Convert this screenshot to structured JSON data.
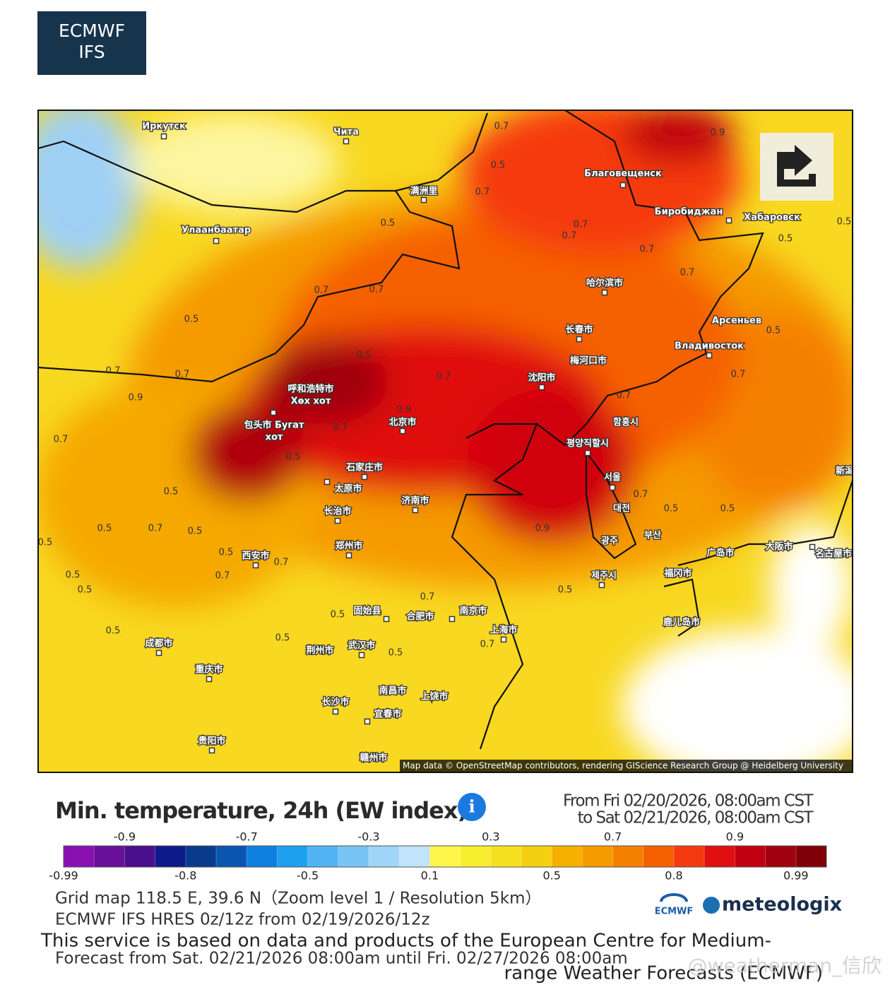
{
  "logo": {
    "line1": "ECMWF",
    "line2": "IFS"
  },
  "map": {
    "cities": [
      "Иркутск",
      "Чита",
      "Благовещенск",
      "Биробиджан",
      "Хабаровск",
      "满洲里",
      "Улаанбаатар",
      "哈尔滨市",
      "长春市",
      "Арсеньев",
      "Владивосток",
      "梅河口市",
      "沈阳市",
      "呼和浩特市",
      "Хөх хот",
      "包头市 Бугат",
      "хот",
      "北京市",
      "함흥시",
      "평양직할시",
      "石家庄市",
      "太原市",
      "서울",
      "济南市",
      "长治市",
      "대전",
      "부산",
      "광주",
      "郑州市",
      "西安市",
      "广岛市",
      "大阪市",
      "名古屋市",
      "제주시",
      "福冈市",
      "固始县",
      "合肥市",
      "南京市",
      "上海市",
      "鹿儿岛市",
      "成都市",
      "荆州市",
      "武汉市",
      "重庆市",
      "南昌市",
      "长沙市",
      "上饶市",
      "宜春市",
      "贵阳市",
      "赣州市",
      "新潟"
    ],
    "contour_labels": [
      0.7,
      0.5,
      0.7,
      0.9,
      0.5,
      0.7,
      0.7,
      0.5,
      0.7,
      0.5,
      0.7,
      0.7,
      0.7,
      0.5,
      0.5,
      0.7,
      0.5,
      0.7,
      0.9,
      0.7,
      0.9,
      0.7,
      0.7,
      0.7,
      0.5,
      0.7,
      0.5,
      0.5,
      0.7,
      0.5,
      0.7,
      0.5,
      0.5,
      0.5,
      0.5,
      0.5,
      0.7,
      0.5,
      0.7,
      0.5,
      0.9,
      0.5,
      0.7,
      0.5,
      0.5,
      0.7,
      0.5
    ],
    "attribution": "Map data © OpenStreetMap contributors, rendering GIScience Research Group @ Heidelberg University"
  },
  "legend": {
    "title": "Min. temperature, 24h (EW index)",
    "from": "From Fri 02/20/2026, 08:00am CST",
    "to": "to Sat 02/21/2026, 08:00am CST",
    "colors": [
      "#8a10b0",
      "#6a0f9a",
      "#4a108c",
      "#0c1a8a",
      "#0a3a8c",
      "#0a55b0",
      "#0f80e0",
      "#1ea0f0",
      "#50b4f4",
      "#78c4f4",
      "#a0d4f8",
      "#c0e4fa",
      "#fdf54a",
      "#f8ee30",
      "#f5e020",
      "#f5d010",
      "#f5b000",
      "#f59a00",
      "#f58000",
      "#f56000",
      "#f53a10",
      "#e01010",
      "#c00010",
      "#a00010",
      "#800008"
    ],
    "top_labels": [
      -0.9,
      -0.7,
      -0.3,
      0.3,
      0.7,
      0.9
    ],
    "bottom_labels": [
      -0.99,
      -0.8,
      -0.5,
      0.1,
      0.5,
      0.8,
      0.99
    ]
  },
  "footer": {
    "grid": "Grid map 118.5 E, 39.6 N（Zoom level 1 / Resolution 5km）",
    "model": "ECMWF IFS HRES 0z/12z from 02/19/2026/12z",
    "service1": "This service is based on data and products of the European Centre for Medium-",
    "service2": "range Weather Forecasts (ECMWF)",
    "forecast": "Forecast from Sat. 02/21/2026 08:00am until Fri. 02/27/2026 08:00am",
    "ecmwf": "ECMWF",
    "brand": "meteologix",
    "watermark": "@weatherman_信欣"
  }
}
